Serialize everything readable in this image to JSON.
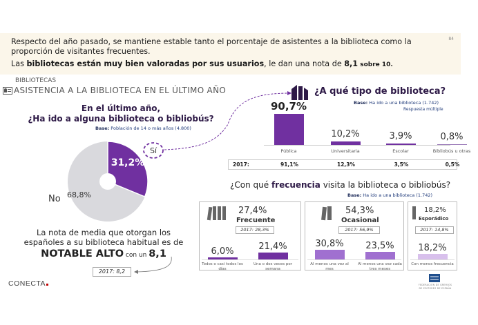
{
  "page_number": "84",
  "banner": {
    "line1": "Respecto del año pasado, se mantiene estable tanto el porcentaje de asistentes a la biblioteca como la proporción de visitantes frecuentes.",
    "line2_prefix": "Las ",
    "line2_bold": "bibliotecas están muy bien valoradas por sus usuarios",
    "line2_mid": ", le dan una nota de ",
    "line2_score": "8,1",
    "line2_suffix": " sobre 10."
  },
  "section": {
    "label": "BIBLIOTECAS",
    "title": "ASISTENCIA A LA BIBLIOTECA EN EL ÚLTIMO AÑO"
  },
  "attendance": {
    "title_line1": "En el último año,",
    "title_line2": "¿Ha ido a alguna biblioteca o bibliobús?",
    "base_label": "Base:",
    "base_text": "Población de 14 o más años (4.800)",
    "si_label": "Sí",
    "si_value": "31,2%",
    "no_label": "No",
    "no_value": "68,8%"
  },
  "rating": {
    "line1": "La nota de media que otorgan los",
    "line2": "españoles a su biblioteca habitual es de",
    "bold": "NOTABLE ALTO",
    "mid": " con un ",
    "score": "8,1",
    "prev": "2017: 8,2"
  },
  "type": {
    "title": "¿A qué tipo de biblioteca?",
    "base_label": "Base:",
    "base_text": "Ha ido a una biblioteca (1.742)",
    "note": "Respuesta múltiple",
    "row2017_label": "2017:"
  },
  "frequency": {
    "title_prefix": "¿Con qué ",
    "title_bold": "frecuencia",
    "title_suffix": " visita la biblioteca o bibliobús?",
    "base_label": "Base:",
    "base_text": "Ha ido a una biblioteca (1.742)",
    "groups": [
      {
        "total": "27,4%",
        "name": "Frecuente",
        "prev": "2017: 28,3%"
      },
      {
        "total": "54,3%",
        "name": "Ocasional",
        "prev": "2017: 56,9%"
      },
      {
        "total": "18,2%",
        "name": "Esporádico",
        "prev": "2017: 14,8%"
      }
    ]
  },
  "logos": {
    "conecta": "CONECTA",
    "fgee_line1": "FEDERACIÓN DE GREMIOS",
    "fgee_line2": "DE EDITORES DE ESPAÑA"
  },
  "colors": {
    "purple": "#7030a0",
    "purple_mid": "#a070d0",
    "purple_light": "#d8c0ec",
    "grey_pie": "#d9d9dd",
    "banner_bg": "#fbf6ea",
    "conecta_dot": "#c00000"
  },
  "chart_data": [
    {
      "type": "pie",
      "title": "En el último año, ¿Ha ido a alguna biblioteca o bibliobús?",
      "categories": [
        "Sí",
        "No"
      ],
      "values": [
        31.2,
        68.8
      ],
      "labels": [
        "31,2%",
        "68,8%"
      ]
    },
    {
      "type": "bar",
      "title": "¿A qué tipo de biblioteca?",
      "categories": [
        "Pública",
        "Universitaria",
        "Escolar",
        "Bibliobús u otras"
      ],
      "values": [
        90.7,
        10.2,
        3.9,
        0.8
      ],
      "labels": [
        "90,7%",
        "10,2%",
        "3,9%",
        "0,8%"
      ],
      "values_2017": [
        91.1,
        12.3,
        3.5,
        0.5
      ],
      "labels_2017": [
        "91,1%",
        "12,3%",
        "3,5%",
        "0,5%"
      ],
      "ylim": [
        0,
        100
      ]
    },
    {
      "type": "bar",
      "title": "¿Con qué frecuencia visita la biblioteca o bibliobús?",
      "categories": [
        "Todos o casi todos los días",
        "Una o dos veces por semana",
        "Al menos una vez al mes",
        "Al menos una vez cada tres meses",
        "Con menos frecuencia"
      ],
      "values": [
        6.0,
        21.4,
        30.8,
        23.5,
        18.2
      ],
      "labels": [
        "6,0%",
        "21,4%",
        "30,8%",
        "23,5%",
        "18,2%"
      ],
      "groups": [
        "Frecuente",
        "Frecuente",
        "Ocasional",
        "Ocasional",
        "Esporádico"
      ],
      "ylim": [
        0,
        100
      ]
    }
  ]
}
